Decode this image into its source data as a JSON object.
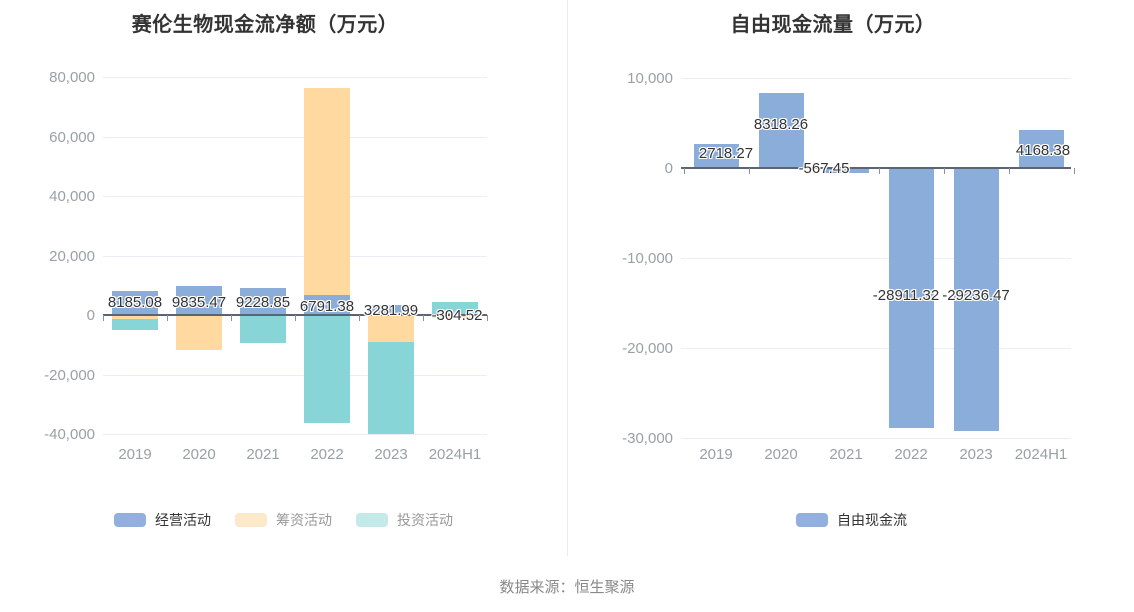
{
  "page": {
    "footer_source": "数据来源：恒生聚源"
  },
  "colors": {
    "operating_bar": "#8badda",
    "financing_bar": "#ffd99f",
    "investing_bar": "#87d5d7",
    "free_cashflow_bar": "#8badda",
    "grid_line": "#e8edf6",
    "zero_axis_line": "#5a6472",
    "axis_tick_label": "#9aa0a6",
    "title_text": "#333333",
    "value_label_text": "#333333",
    "source_text": "#888888",
    "panel_divider": "#ebebeb"
  },
  "chart_data": [
    {
      "type": "bar",
      "title": "赛伦生物现金流净额（万元）",
      "categories": [
        "2019",
        "2020",
        "2021",
        "2022",
        "2023",
        "2024H1"
      ],
      "series": [
        {
          "name": "经营活动",
          "color": "#8badda",
          "legend_color": "#93afdd",
          "values": [
            8185.08,
            9835.47,
            9228.85,
            6791.38,
            3281.99,
            -304.52
          ],
          "labels": [
            "8185.08",
            "9835.47",
            "9228.85",
            "6791.38",
            "3281.99",
            "-304.52"
          ]
        },
        {
          "name": "筹资活动",
          "color": "#ffd99f",
          "legend_color": "#fbe9c9",
          "values": [
            -1300,
            -11800,
            -250,
            76200,
            -9000,
            -1100
          ]
        },
        {
          "name": "投资活动",
          "color": "#87d5d7",
          "legend_color": "#c3e9e8",
          "values": [
            -5000,
            -1500,
            -9400,
            -36300,
            -40000,
            4300
          ]
        }
      ],
      "y_ticks": [
        "80,000",
        "60,000",
        "40,000",
        "20,000",
        "0",
        "-20,000",
        "-40,000"
      ],
      "ylim": [
        -45000,
        85000
      ],
      "grid": true,
      "legend_position": "bottom",
      "value_labels_for_series": "经营活动"
    },
    {
      "type": "bar",
      "title": "自由现金流量（万元）",
      "categories": [
        "2019",
        "2020",
        "2021",
        "2022",
        "2023",
        "2024H1"
      ],
      "series": [
        {
          "name": "自由现金流",
          "color": "#8badda",
          "legend_color": "#93afdd",
          "values": [
            2718.27,
            8318.26,
            -567.45,
            -28911.32,
            -29236.47,
            4168.38
          ],
          "labels": [
            "2718.27",
            "8318.26",
            "-567.45",
            "-28911.32",
            "-29236.47",
            "4168.38"
          ]
        }
      ],
      "y_ticks": [
        "10,000",
        "0",
        "-10,000",
        "-20,000",
        "-30,000"
      ],
      "ylim": [
        -32000,
        11000
      ],
      "grid": true,
      "legend_position": "bottom",
      "value_labels_for_series": "自由现金流"
    }
  ]
}
